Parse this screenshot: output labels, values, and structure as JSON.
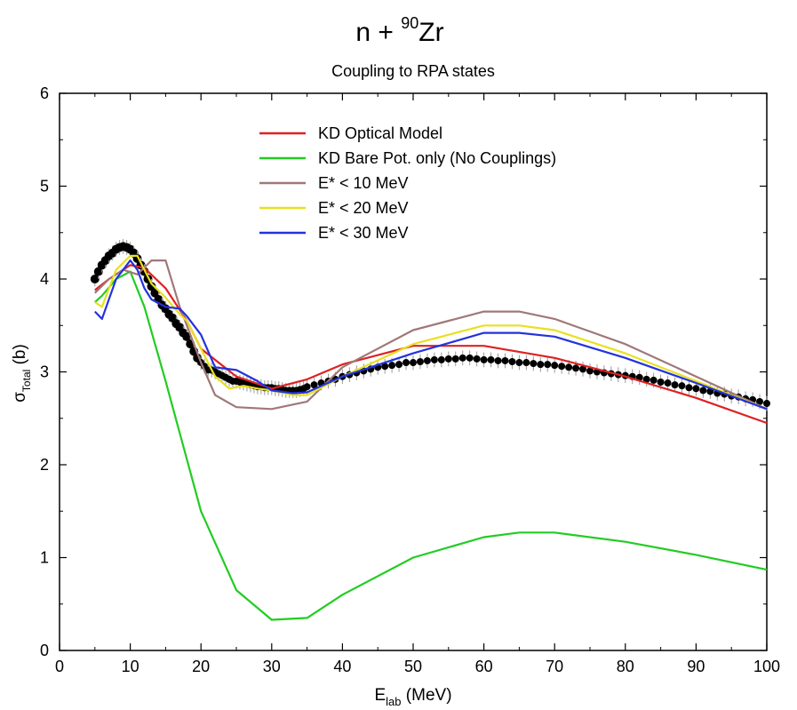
{
  "chart_data": {
    "type": "line",
    "title_main": "n + ",
    "title_sup": "90",
    "title_tail": "Zr",
    "subtitle": "Coupling to RPA states",
    "xlabel_main": "E",
    "xlabel_sub": "lab",
    "xlabel_tail": " (MeV)",
    "ylabel_main": "σ",
    "ylabel_sub": "Total",
    "ylabel_tail": " (b)",
    "xlim": [
      0,
      100
    ],
    "ylim": [
      0,
      6
    ],
    "x_ticks": [
      0,
      10,
      20,
      30,
      40,
      50,
      60,
      70,
      80,
      90,
      100
    ],
    "y_ticks": [
      0,
      1,
      2,
      3,
      4,
      5,
      6
    ],
    "grid": false,
    "legend_position": "top-center",
    "series": [
      {
        "name": "KD Optical Model",
        "color": "#dd2222",
        "x": [
          5,
          7,
          10,
          12,
          15,
          18,
          20,
          25,
          30,
          35,
          40,
          50,
          60,
          70,
          80,
          90,
          100
        ],
        "y": [
          3.88,
          4.0,
          4.15,
          4.12,
          3.9,
          3.55,
          3.25,
          2.95,
          2.82,
          2.92,
          3.08,
          3.28,
          3.28,
          3.15,
          2.95,
          2.72,
          2.45
        ]
      },
      {
        "name": "KD Bare Pot. only (No Couplings)",
        "color": "#22cc22",
        "x": [
          5,
          6,
          8,
          10,
          12,
          15,
          20,
          25,
          30,
          35,
          40,
          50,
          60,
          65,
          70,
          80,
          90,
          100
        ],
        "y": [
          3.75,
          3.82,
          4.0,
          4.08,
          3.7,
          2.9,
          1.5,
          0.65,
          0.33,
          0.35,
          0.6,
          1.0,
          1.22,
          1.27,
          1.27,
          1.17,
          1.03,
          0.87
        ]
      },
      {
        "name": "E* < 10 MeV",
        "color": "#a07878",
        "x": [
          5,
          7,
          9,
          11,
          13,
          15,
          17,
          20,
          22,
          25,
          30,
          35,
          40,
          50,
          60,
          65,
          70,
          80,
          90,
          100
        ],
        "y": [
          3.85,
          4.0,
          4.1,
          4.05,
          4.2,
          4.2,
          3.7,
          3.1,
          2.75,
          2.62,
          2.6,
          2.68,
          3.05,
          3.45,
          3.65,
          3.65,
          3.57,
          3.3,
          2.95,
          2.6
        ]
      },
      {
        "name": "E* < 20 MeV",
        "color": "#e8e020",
        "x": [
          5,
          6,
          8,
          10,
          11,
          12,
          13,
          15,
          17,
          18,
          20,
          22,
          24,
          26,
          28,
          30,
          33,
          35,
          40,
          50,
          60,
          65,
          70,
          80,
          90,
          100
        ],
        "y": [
          3.75,
          3.7,
          4.1,
          4.25,
          4.25,
          4.1,
          3.95,
          3.8,
          3.62,
          3.55,
          3.25,
          2.95,
          2.82,
          2.85,
          2.82,
          2.8,
          2.75,
          2.75,
          2.95,
          3.3,
          3.5,
          3.5,
          3.45,
          3.2,
          2.9,
          2.6
        ]
      },
      {
        "name": "E* < 30 MeV",
        "color": "#2233dd",
        "x": [
          5,
          6,
          8,
          10,
          11,
          12,
          13,
          15,
          17,
          18,
          20,
          22,
          25,
          28,
          30,
          33,
          35,
          40,
          50,
          60,
          65,
          70,
          80,
          90,
          100
        ],
        "y": [
          3.65,
          3.57,
          4.0,
          4.2,
          4.1,
          3.9,
          3.78,
          3.7,
          3.68,
          3.6,
          3.4,
          3.05,
          3.02,
          2.9,
          2.8,
          2.77,
          2.78,
          2.95,
          3.2,
          3.42,
          3.42,
          3.38,
          3.15,
          2.88,
          2.6
        ]
      }
    ],
    "experimental_x": [
      5,
      5.5,
      6,
      6.5,
      7,
      7.5,
      8,
      8.5,
      9,
      9.5,
      10,
      10.5,
      11,
      11.5,
      12,
      12.5,
      13,
      13.5,
      14,
      14.5,
      15,
      15.5,
      16,
      16.5,
      17,
      17.5,
      18,
      18.5,
      19,
      19.5,
      20,
      20.5,
      21,
      21.5,
      22,
      22.5,
      23,
      23.5,
      24,
      24.5,
      25,
      25.5,
      26,
      26.5,
      27,
      27.5,
      28,
      28.5,
      29,
      29.5,
      30,
      30.5,
      31,
      31.5,
      32,
      32.5,
      33,
      33.5,
      34,
      34.5,
      35,
      36,
      37,
      38,
      39,
      40,
      41,
      42,
      43,
      44,
      45,
      46,
      47,
      48,
      49,
      50,
      51,
      52,
      53,
      54,
      55,
      56,
      57,
      58,
      59,
      60,
      61,
      62,
      63,
      64,
      65,
      66,
      67,
      68,
      69,
      70,
      71,
      72,
      73,
      74,
      75,
      76,
      77,
      78,
      79,
      80,
      81,
      82,
      83,
      84,
      85,
      86,
      87,
      88,
      89,
      90,
      91,
      92,
      93,
      94,
      95,
      96,
      97,
      98,
      99,
      100
    ],
    "experimental_y": [
      4.0,
      4.08,
      4.15,
      4.2,
      4.25,
      4.28,
      4.32,
      4.34,
      4.35,
      4.34,
      4.32,
      4.28,
      4.22,
      4.15,
      4.08,
      4.0,
      3.92,
      3.85,
      3.78,
      3.72,
      3.68,
      3.62,
      3.58,
      3.52,
      3.48,
      3.42,
      3.38,
      3.3,
      3.22,
      3.15,
      3.1,
      3.06,
      3.02,
      3.02,
      3.0,
      2.98,
      2.96,
      2.94,
      2.92,
      2.9,
      2.9,
      2.89,
      2.88,
      2.87,
      2.86,
      2.85,
      2.84,
      2.84,
      2.83,
      2.83,
      2.83,
      2.82,
      2.82,
      2.81,
      2.8,
      2.8,
      2.8,
      2.8,
      2.81,
      2.82,
      2.84,
      2.86,
      2.88,
      2.9,
      2.92,
      2.95,
      2.97,
      2.99,
      3.01,
      3.03,
      3.05,
      3.06,
      3.07,
      3.08,
      3.1,
      3.1,
      3.11,
      3.12,
      3.13,
      3.13,
      3.14,
      3.14,
      3.15,
      3.15,
      3.14,
      3.13,
      3.13,
      3.12,
      3.12,
      3.11,
      3.1,
      3.1,
      3.09,
      3.08,
      3.08,
      3.07,
      3.06,
      3.05,
      3.04,
      3.03,
      3.01,
      3.0,
      2.99,
      2.98,
      2.97,
      2.96,
      2.95,
      2.94,
      2.92,
      2.91,
      2.89,
      2.88,
      2.86,
      2.85,
      2.83,
      2.82,
      2.8,
      2.79,
      2.77,
      2.76,
      2.74,
      2.73,
      2.71,
      2.7,
      2.68,
      2.66
    ]
  }
}
